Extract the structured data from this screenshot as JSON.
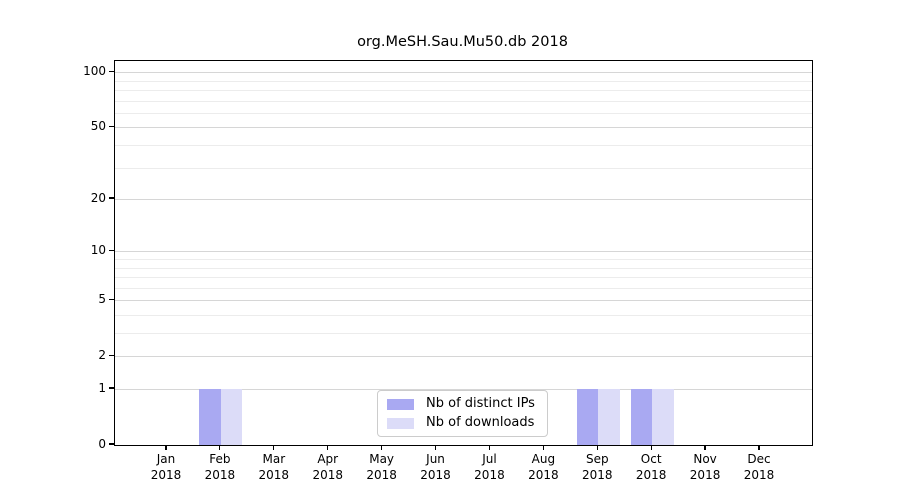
{
  "chart_data": {
    "type": "bar",
    "title": "org.MeSH.Sau.Mu50.db 2018",
    "categories": [
      "Jan",
      "Feb",
      "Mar",
      "Apr",
      "May",
      "Jun",
      "Jul",
      "Aug",
      "Sep",
      "Oct",
      "Nov",
      "Dec"
    ],
    "year_label": "2018",
    "series": [
      {
        "name": "Nb of distinct IPs",
        "color": "#a9a9f2",
        "values": [
          0,
          1,
          0,
          0,
          0,
          0,
          0,
          0,
          1,
          1,
          0,
          0
        ]
      },
      {
        "name": "Nb of downloads",
        "color": "#dcdcf8",
        "values": [
          0,
          1,
          0,
          0,
          0,
          0,
          0,
          0,
          1,
          1,
          0,
          0
        ]
      }
    ],
    "y_axis": {
      "scale": "log10(value+1)",
      "tick_values": [
        0,
        1,
        2,
        5,
        10,
        20,
        50,
        100
      ],
      "tick_labels": [
        "0",
        "1",
        "2",
        "5",
        "10",
        "20",
        "50",
        "100"
      ],
      "minor_gridline_values": [
        3,
        4,
        6,
        7,
        8,
        9,
        30,
        40,
        60,
        70,
        80,
        90
      ],
      "ylim": [
        0,
        115
      ]
    },
    "legend": {
      "position": "bottom-center",
      "entries": [
        "Nb of distinct IPs",
        "Nb of downloads"
      ]
    },
    "grid": "horizontal"
  },
  "colors": {
    "axis": "#000000",
    "grid_major": "#d6d6d6",
    "grid_minor": "#ececec",
    "text": "#000000",
    "legend_border": "#cccccc",
    "background": "#ffffff"
  }
}
